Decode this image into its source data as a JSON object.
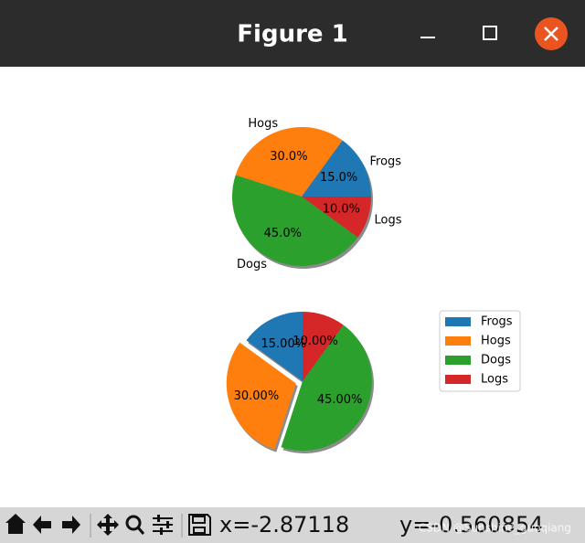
{
  "window": {
    "title": "Figure 1"
  },
  "chart_data": [
    {
      "type": "pie",
      "categories": [
        "Frogs",
        "Hogs",
        "Dogs",
        "Logs"
      ],
      "values": [
        15,
        30,
        45,
        10
      ],
      "value_labels": [
        "15.0%",
        "30.0%",
        "45.0%",
        "10.0%"
      ],
      "colors": [
        "#1f77b4",
        "#ff7f0e",
        "#2ca02c",
        "#d62728"
      ],
      "startangle": 0,
      "explode": [
        0,
        0,
        0,
        0
      ],
      "shadow": true,
      "show_labels": true
    },
    {
      "type": "pie",
      "categories": [
        "Frogs",
        "Hogs",
        "Dogs",
        "Logs"
      ],
      "values": [
        15,
        30,
        45,
        10
      ],
      "value_labels": [
        "15.00%",
        "30.00%",
        "45.00%",
        "10.00%"
      ],
      "colors": [
        "#1f77b4",
        "#ff7f0e",
        "#2ca02c",
        "#d62728"
      ],
      "startangle": 90,
      "explode": [
        0,
        0.1,
        0,
        0
      ],
      "shadow": true,
      "show_labels": false,
      "legend": "right"
    }
  ],
  "toolbar": {
    "x_coord": "x=-2.87118",
    "y_coord": "y=-0.560854"
  },
  "watermark": "CSDN @Sunshine_guoqiang"
}
